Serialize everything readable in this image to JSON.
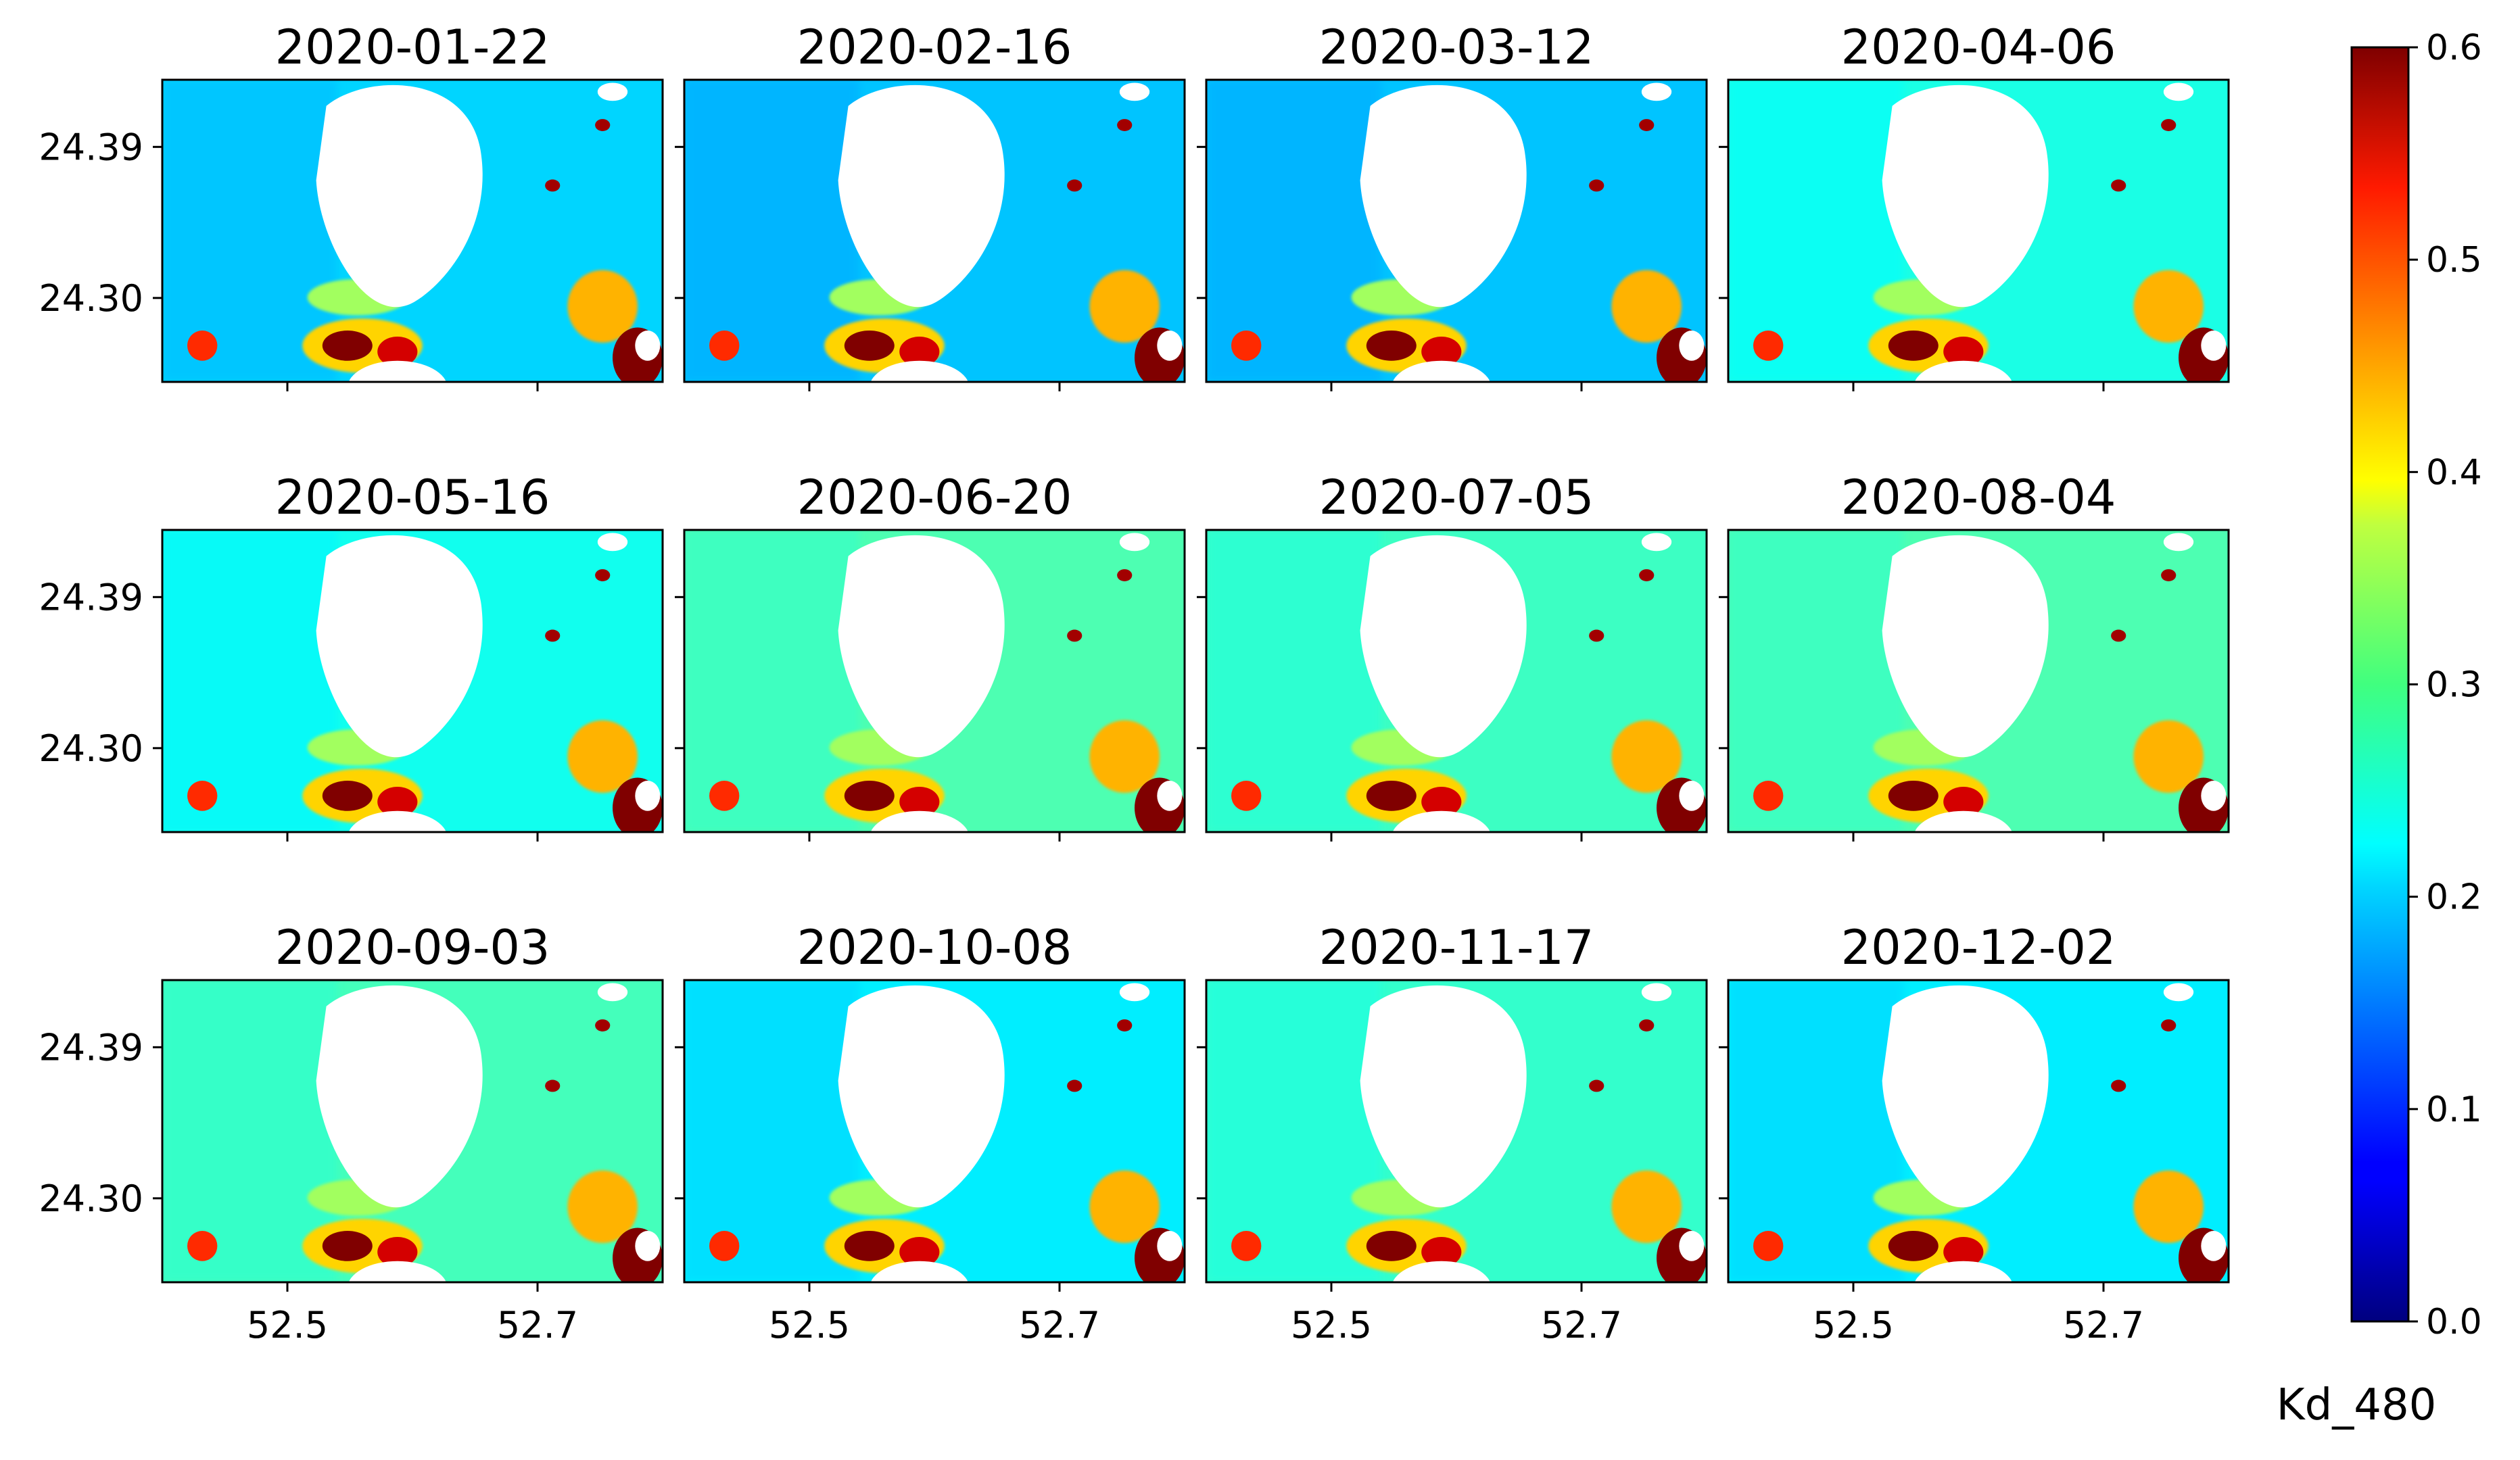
{
  "chart_data": {
    "type": "heatmap",
    "variable": "Kd_480",
    "panel_titles": [
      "2020-01-22",
      "2020-02-16",
      "2020-03-12",
      "2020-04-06",
      "2020-05-16",
      "2020-06-20",
      "2020-07-05",
      "2020-08-04",
      "2020-09-03",
      "2020-10-08",
      "2020-11-17",
      "2020-12-02"
    ],
    "layout": {
      "rows": 3,
      "cols": 4
    },
    "background_kd": [
      0.2,
      0.19,
      0.19,
      0.24,
      0.235,
      0.27,
      0.26,
      0.27,
      0.265,
      0.215,
      0.255,
      0.215
    ],
    "x_ticks": [
      "52.5",
      "52.7"
    ],
    "x_tick_values": [
      52.5,
      52.7
    ],
    "y_ticks": [
      "24.39",
      "24.30"
    ],
    "y_tick_values": [
      24.39,
      24.3
    ],
    "xlim": [
      52.4,
      52.8
    ],
    "ylim": [
      24.25,
      24.43
    ],
    "colorbar": {
      "label": "Kd_480",
      "range": [
        0.0,
        0.6
      ],
      "ticks": [
        "0.0",
        "0.1",
        "0.2",
        "0.3",
        "0.4",
        "0.5",
        "0.6"
      ],
      "tick_values": [
        0.0,
        0.1,
        0.2,
        0.3,
        0.4,
        0.5,
        0.6
      ],
      "colormap": "jet"
    }
  },
  "colors": {
    "land": "#ffffff",
    "axis": "#000000"
  }
}
